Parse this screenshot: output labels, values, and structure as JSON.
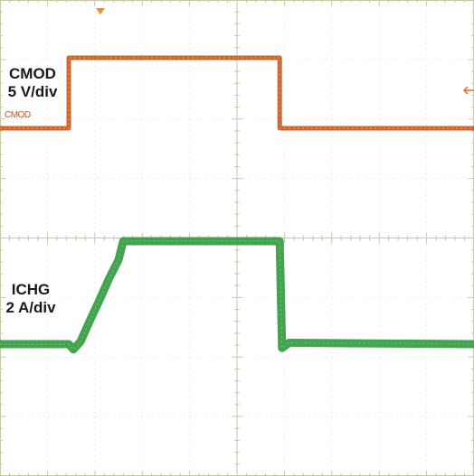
{
  "chart_data": {
    "type": "line",
    "x_range": [
      0,
      10
    ],
    "grid": true,
    "channels": [
      {
        "label": "CMOD",
        "scale": "5 V/div",
        "marker": "CMOD",
        "color": "#c8541a",
        "x": [
          0.0,
          1.45,
          1.45,
          5.9,
          5.9,
          10.0
        ],
        "y": [
          0.0,
          0.0,
          15.0,
          15.0,
          0.0,
          0.0
        ]
      },
      {
        "label": "ICHG",
        "scale": "2 A/div",
        "color": "#2e9a3c",
        "x": [
          0.0,
          1.45,
          1.55,
          1.7,
          1.9,
          2.1,
          2.3,
          2.5,
          2.6,
          2.8,
          5.9,
          5.95,
          6.1,
          10.0
        ],
        "y": [
          0.0,
          0.0,
          -0.4,
          0.2,
          1.8,
          3.3,
          4.9,
          6.3,
          7.7,
          7.7,
          7.7,
          -0.3,
          0.1,
          0.0
        ]
      }
    ]
  }
}
